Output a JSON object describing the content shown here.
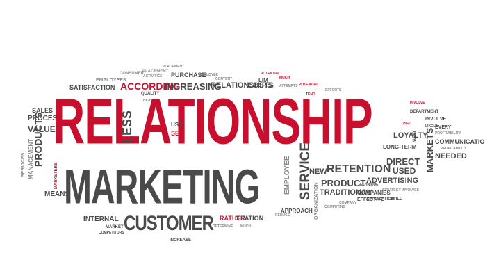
{
  "words": {
    "relationship": "RELATIONSHIP",
    "marketing": "MARKETING",
    "customer": "CUSTOMER",
    "according": "ACCORDING",
    "increasing": "INCREASING",
    "relationships": "RELATIONSHIPS",
    "costs": "COSTS",
    "satisfaction": "SATISFACTION",
    "employees": "EMPLOYEES",
    "consumer": "CONSUMER",
    "purchase": "PURCHASE",
    "placement": "PLACEMENT",
    "activities": "ACTIVITIES",
    "quality": "QUALITY",
    "sales": "SALES",
    "process": "PROCESS",
    "value": "VALUE",
    "products": "PRODUCTS",
    "management": "MANAGEMENT",
    "services": "SERVICES",
    "means": "MEANS",
    "marketers": "MARKETERS",
    "internal": "INTERNAL",
    "market": "MARKET",
    "competitors": "COMPETITORS",
    "increase": "INCREASE",
    "rather": "RATHER",
    "citation": "CITATION",
    "service": "SERVICE",
    "employee": "EMPLOYEE",
    "retention": "RETENTION",
    "product": "PRODUCT",
    "traditional": "TRADITIONAL",
    "advertising": "ADVERTISING",
    "companies": "COMPANIES",
    "new": "NEW",
    "direct": "DIRECT",
    "used": "USED",
    "long_term": "LONG-TERM",
    "loyalty": "LOYALTY",
    "markets": "MARKETS",
    "communication": "COMMUNICATION",
    "needed": "NEEDED",
    "department": "DEPARTMENT",
    "involve": "INVOLVE",
    "effective": "EFFECTIVE",
    "application": "APPLICATION",
    "approach": "APPROACH",
    "less": "LESS",
    "use": "USE",
    "see": "SEE",
    "much": "MUCH",
    "lim": "LIM",
    "tend": "TEND",
    "many": "MANY",
    "likely": "LIKELY",
    "every": "EVERY",
    "technique": "TECHNIQUE",
    "strategy": "STRATEGY",
    "involves": "INVOLVES",
    "still": "STILL",
    "company": "COMPANY",
    "organization": "ORGANIZATION",
    "potential": "POTENTIAL",
    "attempts": "ATTEMPTS",
    "determine": "DETERMINE",
    "reduce": "REDUCE",
    "high": "HIGH",
    "efforts": "EFFORTS",
    "content": "CONTENT",
    "competing": "COMPETING",
    "profitability": "PROFITABILITY"
  }
}
